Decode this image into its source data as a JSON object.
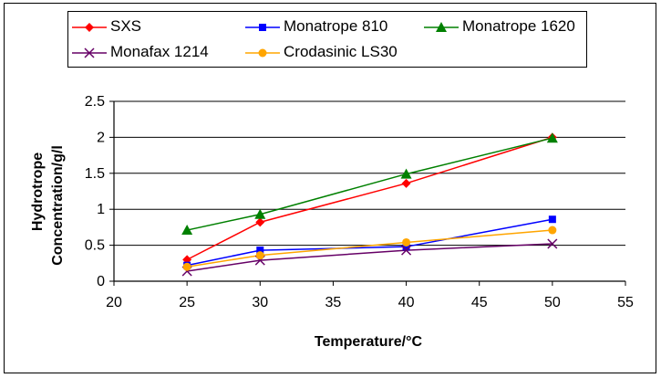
{
  "chart_data": {
    "type": "line",
    "xlabel": "Temperature/°C",
    "ylabel_lines": [
      "Hydrotrope",
      "Concentration/g/l"
    ],
    "xlim": [
      20,
      55
    ],
    "ylim": [
      0,
      2.5
    ],
    "x_ticks": [
      "20",
      "25",
      "30",
      "35",
      "40",
      "45",
      "50",
      "55"
    ],
    "y_ticks": [
      "0",
      "0.5",
      "1",
      "1.5",
      "2",
      "2.5"
    ],
    "grid": "horizontal",
    "legend_position": "top",
    "series": [
      {
        "name": "SXS",
        "color": "#ff0000",
        "marker": "diamond",
        "x": [
          25,
          30,
          40,
          50
        ],
        "y": [
          0.3,
          0.82,
          1.36,
          2.0
        ]
      },
      {
        "name": "Monatrope 810",
        "color": "#0000ff",
        "marker": "square",
        "x": [
          25,
          30,
          40,
          50
        ],
        "y": [
          0.22,
          0.43,
          0.48,
          0.86
        ]
      },
      {
        "name": "Monatrope 1620",
        "color": "#008000",
        "marker": "triangle",
        "x": [
          25,
          30,
          40,
          50
        ],
        "y": [
          0.71,
          0.93,
          1.49,
          1.99
        ]
      },
      {
        "name": "Monafax 1214",
        "color": "#660066",
        "marker": "x",
        "x": [
          25,
          30,
          40,
          50
        ],
        "y": [
          0.14,
          0.29,
          0.43,
          0.52
        ]
      },
      {
        "name": "Crodasinic LS30",
        "color": "#ffa500",
        "marker": "circle",
        "x": [
          25,
          30,
          40,
          50
        ],
        "y": [
          0.2,
          0.36,
          0.54,
          0.71
        ]
      }
    ]
  }
}
